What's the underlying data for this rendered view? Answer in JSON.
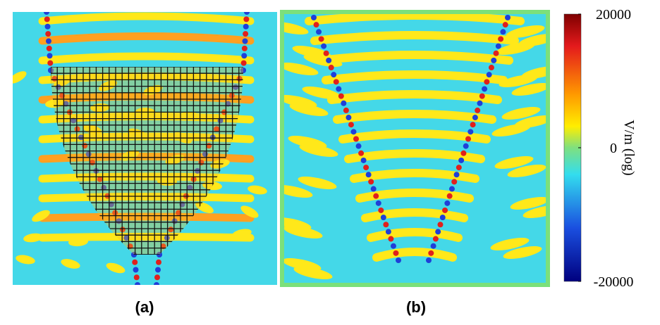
{
  "panels": [
    {
      "label": "(a)"
    },
    {
      "label": "(b)"
    }
  ],
  "colorbar": {
    "label": "V/m (log)",
    "ticks": [
      20000,
      0,
      -20000
    ]
  }
}
